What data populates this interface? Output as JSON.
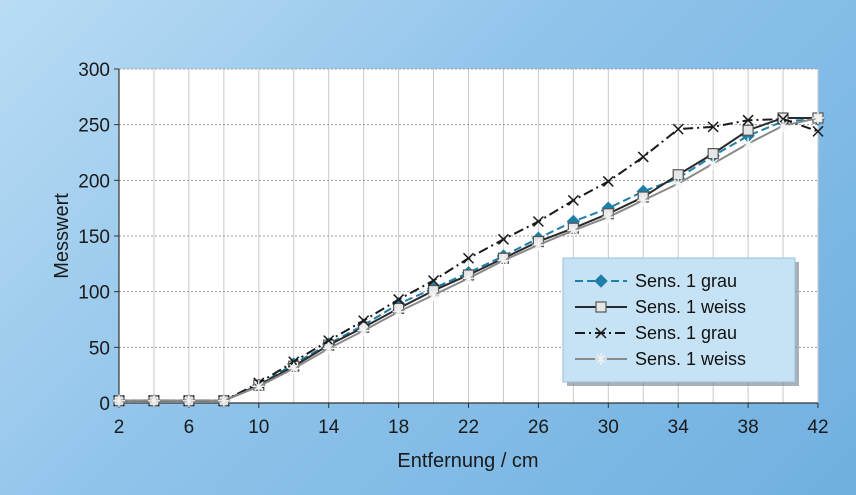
{
  "chart_data": {
    "type": "line",
    "xlabel": "Entfernung / cm",
    "ylabel": "Messwert",
    "x": [
      2,
      4,
      6,
      8,
      10,
      12,
      14,
      16,
      18,
      20,
      22,
      24,
      26,
      28,
      30,
      32,
      34,
      36,
      38,
      40,
      42
    ],
    "xticks": [
      2,
      6,
      10,
      14,
      18,
      22,
      26,
      30,
      34,
      38,
      42
    ],
    "yticks": [
      0,
      50,
      100,
      150,
      200,
      250,
      300
    ],
    "xlim": [
      2,
      42
    ],
    "ylim": [
      0,
      300
    ],
    "grid": true,
    "legend_position": "bottom-right",
    "series": [
      {
        "name": "Sens. 1 grau",
        "color": "#1f7fa8",
        "marker": "diamond",
        "dash": "8,4",
        "values": [
          2,
          2,
          2,
          2,
          16,
          35,
          53,
          70,
          89,
          103,
          117,
          132,
          148,
          163,
          175,
          190,
          202,
          222,
          240,
          253,
          255
        ]
      },
      {
        "name": "Sens. 1 weiss",
        "color": "#2a2a2a",
        "marker": "square",
        "dash": "",
        "values": [
          2,
          2,
          2,
          2,
          16,
          33,
          52,
          68,
          85,
          101,
          115,
          130,
          145,
          157,
          170,
          185,
          205,
          224,
          245,
          256,
          256
        ]
      },
      {
        "name": "Sens. 1 grau",
        "color": "#1a1a1a",
        "marker": "x",
        "dash": "10,4,2,4",
        "values": [
          2,
          2,
          2,
          2,
          18,
          37,
          56,
          74,
          93,
          110,
          130,
          147,
          163,
          182,
          199,
          221,
          246,
          248,
          254,
          255,
          244
        ]
      },
      {
        "name": "Sens. 1 weiss",
        "color": "#8a8a8a",
        "marker": "star",
        "dash": "",
        "values": [
          2,
          2,
          2,
          2,
          15,
          31,
          49,
          65,
          82,
          97,
          112,
          128,
          142,
          155,
          167,
          182,
          197,
          215,
          233,
          249,
          256
        ]
      }
    ]
  }
}
